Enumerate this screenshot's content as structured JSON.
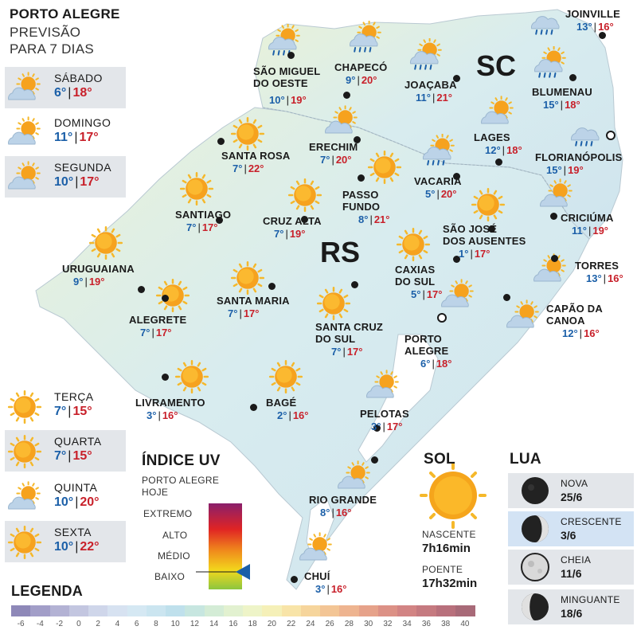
{
  "header": {
    "title": "PORTO ALEGRE",
    "subtitle_line1": "PREVISÃO",
    "subtitle_line2": "PARA 7 DIAS"
  },
  "forecast_days": [
    {
      "day": "SÁBADO",
      "min": "6°",
      "max": "18°",
      "icon": "partly-cloudy-icon"
    },
    {
      "day": "DOMINGO",
      "min": "11°",
      "max": "17°",
      "icon": "partly-cloudy-icon"
    },
    {
      "day": "SEGUNDA",
      "min": "10°",
      "max": "17°",
      "icon": "partly-cloudy-icon"
    },
    {
      "day": "TERÇA",
      "min": "7°",
      "max": "15°",
      "icon": "sun-icon"
    },
    {
      "day": "QUARTA",
      "min": "7°",
      "max": "15°",
      "icon": "sun-icon"
    },
    {
      "day": "QUINTA",
      "min": "10°",
      "max": "20°",
      "icon": "partly-cloudy-icon"
    },
    {
      "day": "SEXTA",
      "min": "10°",
      "max": "22°",
      "icon": "sun-icon"
    }
  ],
  "states": {
    "sc": "SC",
    "rs": "RS"
  },
  "cities": [
    {
      "name": "JOINVILLE",
      "min": "13°",
      "max": "16°",
      "icon": "cloud-rain-icon"
    },
    {
      "name": "SÃO MIGUEL\nDO OESTE",
      "min": "10°",
      "max": "19°",
      "icon": "sun-cloud-rain-icon"
    },
    {
      "name": "CHAPECÓ",
      "min": "9°",
      "max": "20°",
      "icon": "sun-cloud-rain-icon"
    },
    {
      "name": "JOAÇABA",
      "min": "11°",
      "max": "21°",
      "icon": "sun-cloud-rain-icon"
    },
    {
      "name": "BLUMENAU",
      "min": "15°",
      "max": "18°",
      "icon": "sun-cloud-rain-icon"
    },
    {
      "name": "LAGES",
      "min": "12°",
      "max": "18°",
      "icon": "partly-cloudy-icon"
    },
    {
      "name": "FLORIANÓPOLIS",
      "min": "15°",
      "max": "19°",
      "icon": "cloud-rain-icon"
    },
    {
      "name": "ERECHIM",
      "min": "7°",
      "max": "20°",
      "icon": "partly-cloudy-icon"
    },
    {
      "name": "VACARIA",
      "min": "5°",
      "max": "20°",
      "icon": "sun-cloud-rain-icon"
    },
    {
      "name": "SANTA ROSA",
      "min": "7°",
      "max": "22°",
      "icon": "sun-icon"
    },
    {
      "name": "PASSO\nFUNDO",
      "min": "8°",
      "max": "21°",
      "icon": "sun-icon"
    },
    {
      "name": "CRICIÚMA",
      "min": "11°",
      "max": "19°",
      "icon": "partly-cloudy-icon"
    },
    {
      "name": "SANTIAGO",
      "min": "7°",
      "max": "17°",
      "icon": "sun-icon"
    },
    {
      "name": "CRUZ ALTA",
      "min": "7°",
      "max": "19°",
      "icon": "sun-icon"
    },
    {
      "name": "SÃO JOSÉ\nDOS AUSENTES",
      "min": "1°",
      "max": "17°",
      "icon": "sun-icon"
    },
    {
      "name": "URUGUAIANA",
      "min": "9°",
      "max": "19°",
      "icon": "sun-icon"
    },
    {
      "name": "CAXIAS\nDO SUL",
      "min": "5°",
      "max": "17°",
      "icon": "sun-icon"
    },
    {
      "name": "TORRES",
      "min": "13°",
      "max": "16°",
      "icon": "partly-cloudy-icon"
    },
    {
      "name": "SANTA MARIA",
      "min": "7°",
      "max": "17°",
      "icon": "sun-icon"
    },
    {
      "name": "ALEGRETE",
      "min": "7°",
      "max": "17°",
      "icon": "sun-icon"
    },
    {
      "name": "CAPÃO DA\nCANOA",
      "min": "12°",
      "max": "16°",
      "icon": "partly-cloudy-icon"
    },
    {
      "name": "SANTA CRUZ\nDO SUL",
      "min": "7°",
      "max": "17°",
      "icon": "sun-icon"
    },
    {
      "name": "PORTO\nALEGRE",
      "min": "6°",
      "max": "18°",
      "icon": "partly-cloudy-icon"
    },
    {
      "name": "LIVRAMENTO",
      "min": "3°",
      "max": "16°",
      "icon": "sun-icon"
    },
    {
      "name": "BAGÉ",
      "min": "2°",
      "max": "16°",
      "icon": "sun-icon"
    },
    {
      "name": "PELOTAS",
      "min": "3°",
      "max": "17°",
      "icon": "partly-cloudy-icon"
    },
    {
      "name": "RIO GRANDE",
      "min": "8°",
      "max": "16°",
      "icon": "partly-cloudy-icon"
    },
    {
      "name": "CHUÍ",
      "min": "3°",
      "max": "16°",
      "icon": "partly-cloudy-icon"
    }
  ],
  "uv": {
    "title": "ÍNDICE UV",
    "subtitle_line1": "PORTO ALEGRE",
    "subtitle_line2": "HOJE",
    "levels": [
      "EXTREMO",
      "ALTO",
      "MÉDIO",
      "BAIXO"
    ],
    "current_level": "BAIXO"
  },
  "sun": {
    "title": "SOL",
    "rise_label": "NASCENTE",
    "rise": "7h16min",
    "set_label": "POENTE",
    "set": "17h32min"
  },
  "moon": {
    "title": "LUA",
    "phases": [
      {
        "name": "NOVA",
        "date": "25/6",
        "icon": "new-moon-icon"
      },
      {
        "name": "CRESCENTE",
        "date": "3/6",
        "icon": "waxing-moon-icon"
      },
      {
        "name": "CHEIA",
        "date": "11/6",
        "icon": "full-moon-icon"
      },
      {
        "name": "MINGUANTE",
        "date": "18/6",
        "icon": "waning-moon-icon"
      }
    ],
    "highlighted": "CRESCENTE"
  },
  "legend": {
    "title": "LEGENDA",
    "ticks": [
      "-6",
      "-4",
      "-2",
      "0",
      "2",
      "4",
      "6",
      "8",
      "10",
      "12",
      "14",
      "16",
      "18",
      "20",
      "22",
      "24",
      "26",
      "28",
      "30",
      "32",
      "34",
      "36",
      "38",
      "40"
    ],
    "colors": [
      "#8e88b8",
      "#a29ec8",
      "#b3b2d4",
      "#c3c6e0",
      "#cfd6ea",
      "#d7e2f1",
      "#d5e8f3",
      "#cbe5f0",
      "#bfe0ec",
      "#c7e6e0",
      "#d4ecd6",
      "#e2f1d0",
      "#eef4c8",
      "#f5f0b8",
      "#f8e4a8",
      "#f6d59c",
      "#f3c595",
      "#eeb490",
      "#e6a28a",
      "#dc9186",
      "#d28484",
      "#c57a80",
      "#b8707c",
      "#a86a78"
    ]
  },
  "colors": {
    "min_temp": "#1b5fa8",
    "max_temp": "#c8202a",
    "sea": "#ffffff",
    "land": "#dceef0"
  }
}
